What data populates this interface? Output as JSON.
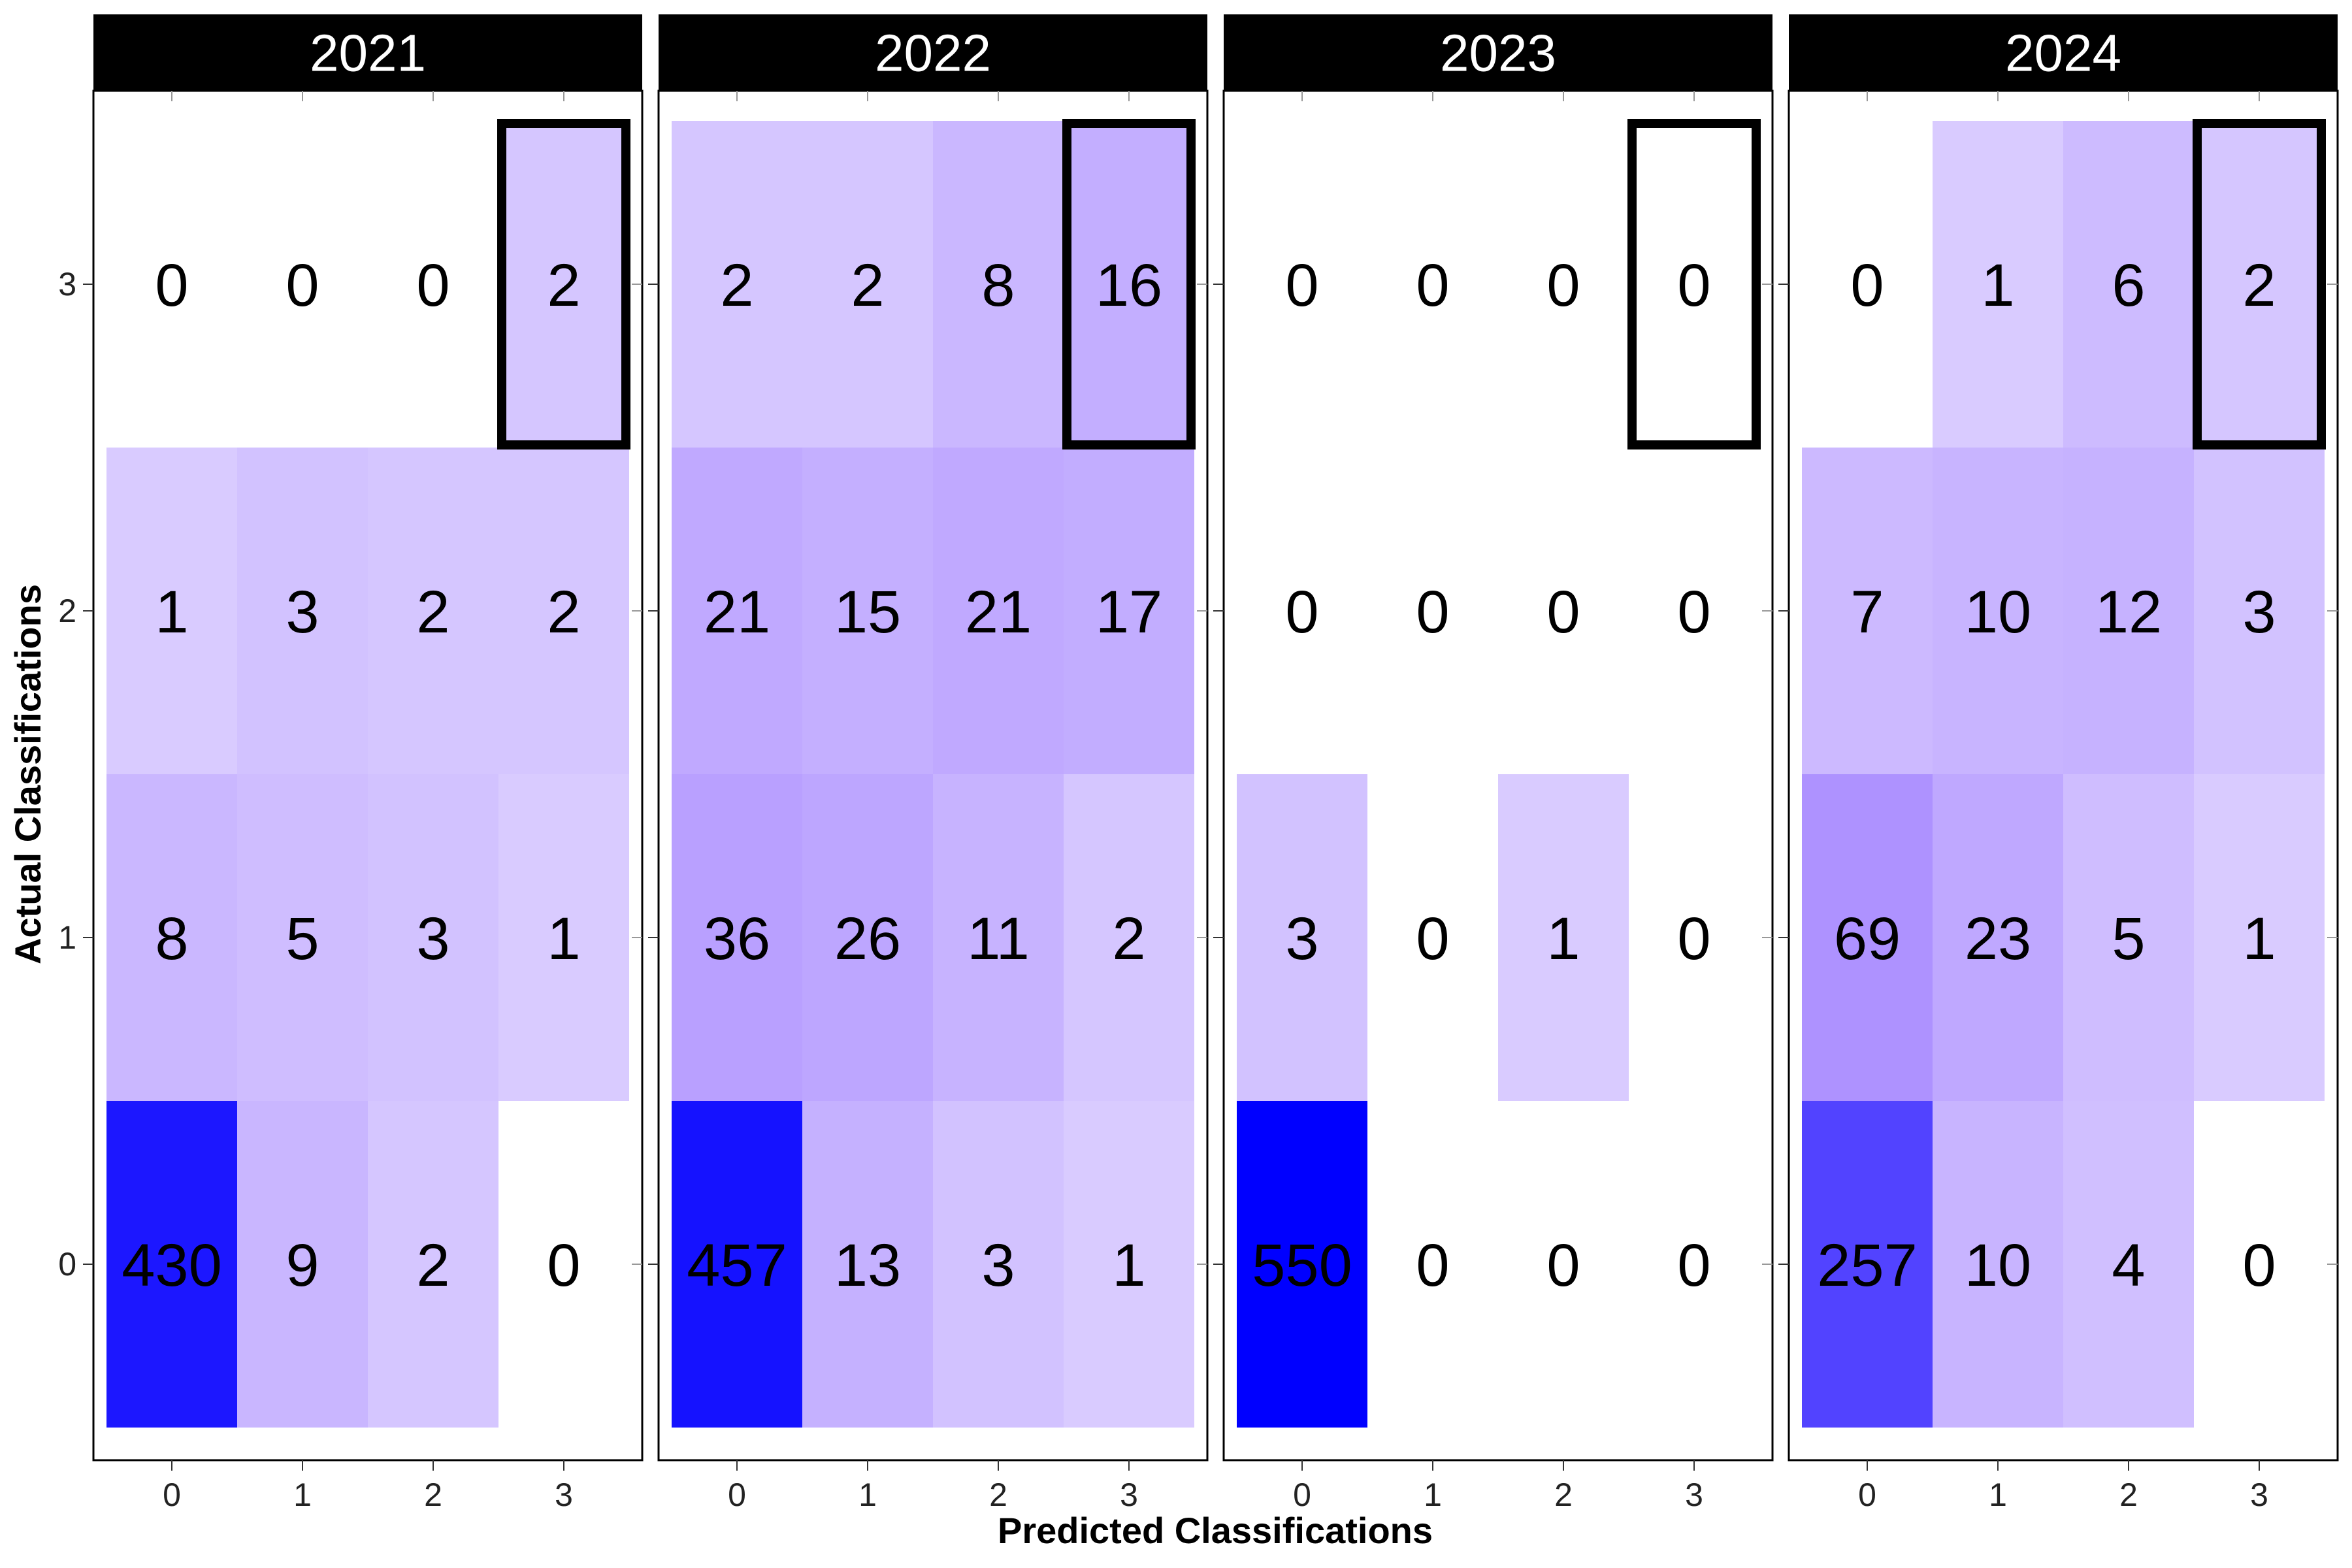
{
  "chart_data": {
    "type": "heatmap",
    "xlabel": "Predicted Classifications",
    "ylabel": "Actual Classifications",
    "x_categories": [
      "0",
      "1",
      "2",
      "3"
    ],
    "y_categories": [
      "0",
      "1",
      "2",
      "3"
    ],
    "color_low": "#ffffff",
    "color_high": "#0000ff",
    "highlight_cell": {
      "predicted": "3",
      "actual": "3"
    },
    "facets": [
      {
        "title": "2021",
        "matrix": [
          [
            430,
            9,
            2,
            0
          ],
          [
            8,
            5,
            3,
            1
          ],
          [
            1,
            3,
            2,
            2
          ],
          [
            0,
            0,
            0,
            2
          ]
        ]
      },
      {
        "title": "2022",
        "matrix": [
          [
            457,
            13,
            3,
            1
          ],
          [
            36,
            26,
            11,
            2
          ],
          [
            21,
            15,
            21,
            17
          ],
          [
            2,
            2,
            8,
            16
          ]
        ]
      },
      {
        "title": "2023",
        "matrix": [
          [
            550,
            0,
            0,
            0
          ],
          [
            3,
            0,
            1,
            0
          ],
          [
            0,
            0,
            0,
            0
          ],
          [
            0,
            0,
            0,
            0
          ]
        ]
      },
      {
        "title": "2024",
        "matrix": [
          [
            257,
            10,
            4,
            0
          ],
          [
            69,
            23,
            5,
            1
          ],
          [
            7,
            10,
            12,
            3
          ],
          [
            0,
            1,
            6,
            2
          ]
        ]
      }
    ]
  }
}
